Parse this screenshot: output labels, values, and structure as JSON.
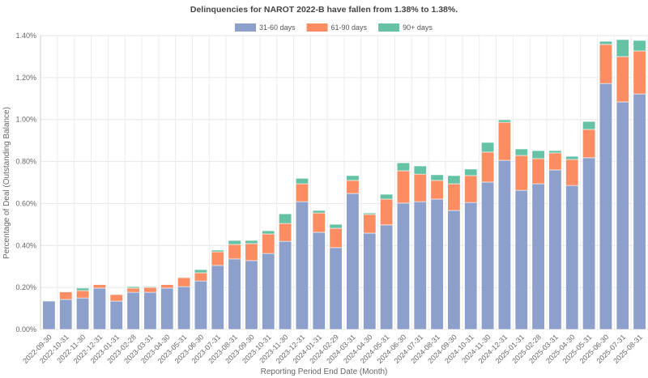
{
  "chart_data": {
    "type": "bar",
    "stacked": true,
    "title": "Delinquencies for NAROT 2022-B have fallen from 1.38% to 1.38%.",
    "xlabel": "Reporting Period End Date (Month)",
    "ylabel": "Percentage of Deal (Outstanding Balance)",
    "ylim": [
      0,
      1.4
    ],
    "yticks": [
      "0.00%",
      "0.20%",
      "0.40%",
      "0.60%",
      "0.80%",
      "1.00%",
      "1.20%",
      "1.40%"
    ],
    "grid": true,
    "legend_position": "top-center",
    "categories": [
      "2022-09-30",
      "2022-10-31",
      "2022-11-30",
      "2022-12-31",
      "2023-01-31",
      "2023-02-28",
      "2023-03-31",
      "2023-04-30",
      "2023-05-31",
      "2023-06-30",
      "2023-07-31",
      "2023-08-31",
      "2023-09-30",
      "2023-10-31",
      "2023-11-30",
      "2023-12-31",
      "2024-01-31",
      "2024-02-29",
      "2024-03-31",
      "2024-04-30",
      "2024-05-31",
      "2024-06-30",
      "2024-07-31",
      "2024-08-31",
      "2024-09-30",
      "2024-10-31",
      "2024-11-30",
      "2024-12-31",
      "2025-01-31",
      "2025-02-28",
      "2025-03-31",
      "2025-04-30",
      "2025-05-31",
      "2025-06-30",
      "2025-07-31",
      "2025-08-31"
    ],
    "series": [
      {
        "name": "31-60 days",
        "color": "#8da0cb",
        "values": [
          0.135,
          0.143,
          0.15,
          0.197,
          0.135,
          0.177,
          0.177,
          0.197,
          0.204,
          0.231,
          0.305,
          0.336,
          0.328,
          0.362,
          0.42,
          0.609,
          0.463,
          0.39,
          0.648,
          0.459,
          0.498,
          0.602,
          0.609,
          0.621,
          0.567,
          0.605,
          0.702,
          0.806,
          0.663,
          0.694,
          0.76,
          0.686,
          0.818,
          1.172,
          1.084,
          1.122
        ]
      },
      {
        "name": "61-90 days",
        "color": "#fc8d62",
        "values": [
          0.0,
          0.036,
          0.035,
          0.017,
          0.031,
          0.02,
          0.023,
          0.017,
          0.043,
          0.039,
          0.065,
          0.069,
          0.081,
          0.093,
          0.085,
          0.085,
          0.092,
          0.092,
          0.062,
          0.089,
          0.123,
          0.154,
          0.131,
          0.089,
          0.127,
          0.128,
          0.143,
          0.181,
          0.166,
          0.12,
          0.081,
          0.124,
          0.135,
          0.186,
          0.216,
          0.205
        ]
      },
      {
        "name": "90+ days",
        "color": "#66c2a5",
        "values": [
          0.0,
          0.002,
          0.012,
          0.002,
          0.0,
          0.007,
          0.004,
          0.002,
          0.003,
          0.015,
          0.008,
          0.019,
          0.015,
          0.015,
          0.046,
          0.026,
          0.012,
          0.019,
          0.023,
          0.007,
          0.023,
          0.038,
          0.039,
          0.027,
          0.039,
          0.031,
          0.046,
          0.012,
          0.031,
          0.038,
          0.011,
          0.015,
          0.038,
          0.015,
          0.081,
          0.05
        ]
      }
    ]
  }
}
